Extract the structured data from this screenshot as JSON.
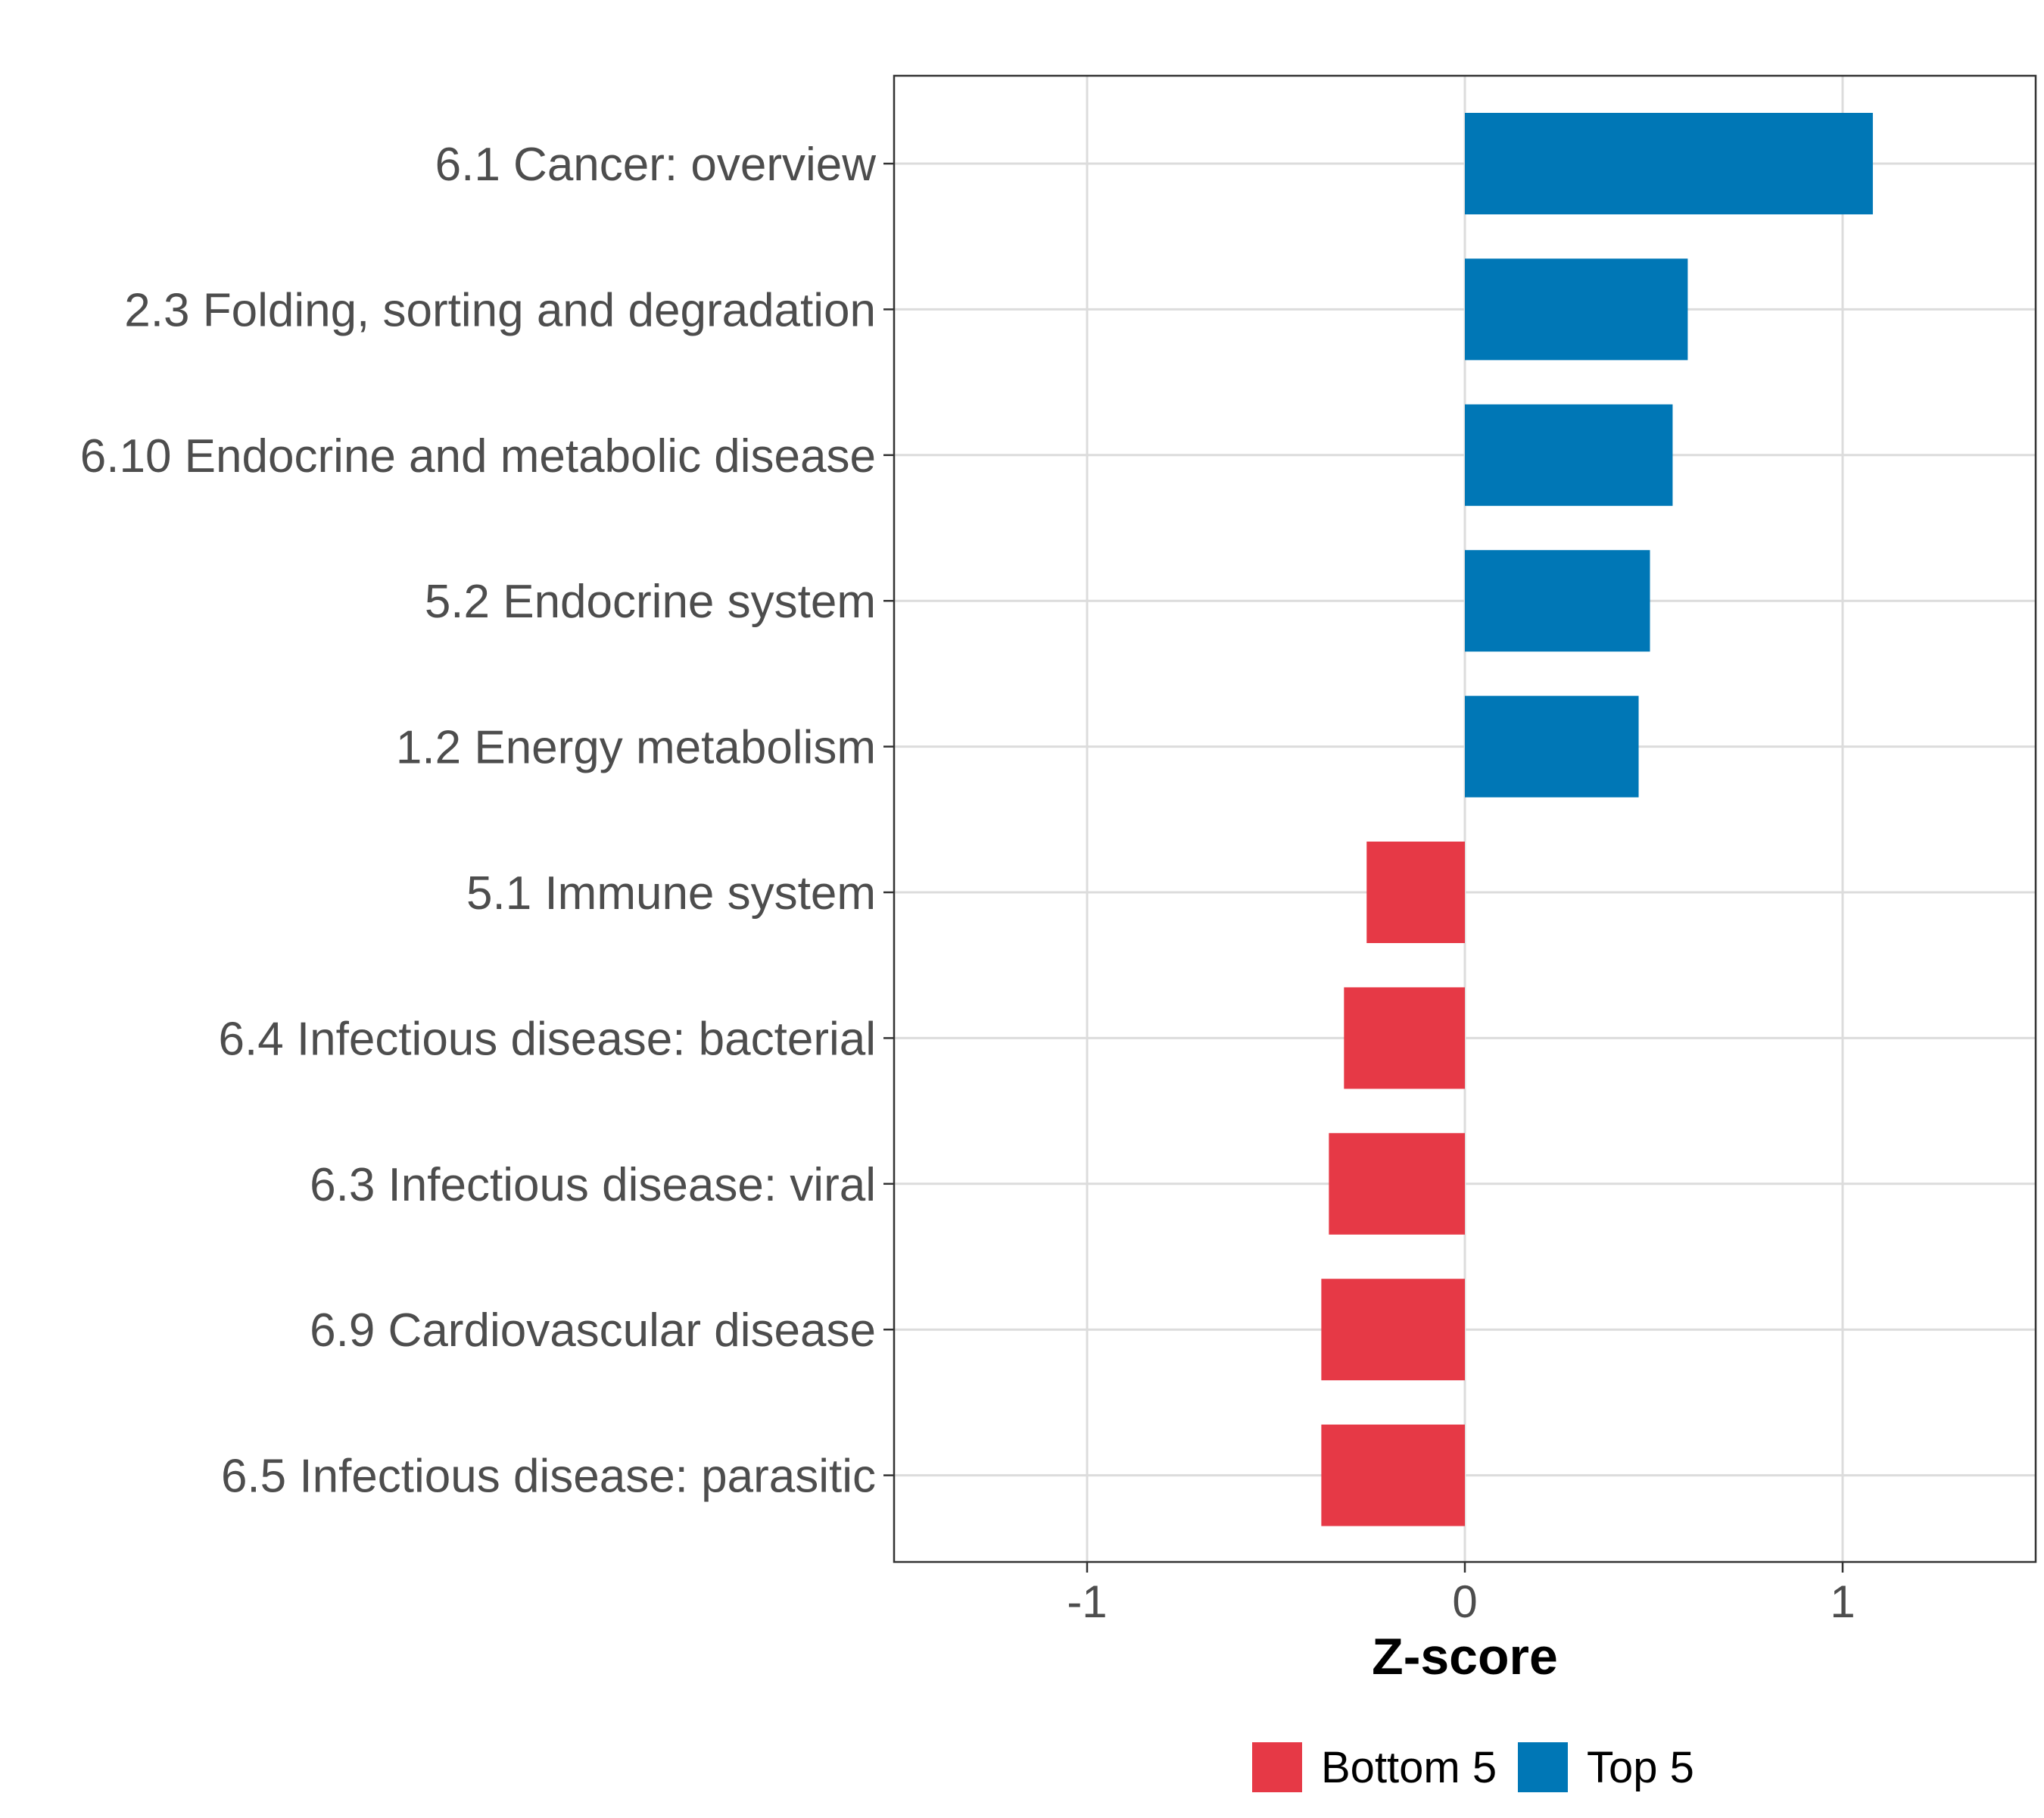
{
  "chart_data": {
    "type": "bar",
    "orientation": "horizontal",
    "categories": [
      "6.1 Cancer: overview",
      "2.3 Folding, sorting and degradation",
      "6.10 Endocrine and metabolic disease",
      "5.2 Endocrine system",
      "1.2 Energy metabolism",
      "5.1 Immune system",
      "6.4 Infectious disease: bacterial",
      "6.3 Infectious disease: viral",
      "6.9 Cardiovascular disease",
      "6.5 Infectious disease: parasitic"
    ],
    "values": [
      1.08,
      0.59,
      0.55,
      0.49,
      0.46,
      -0.26,
      -0.32,
      -0.36,
      -0.38,
      -0.38
    ],
    "groups": [
      "Top 5",
      "Top 5",
      "Top 5",
      "Top 5",
      "Top 5",
      "Bottom 5",
      "Bottom 5",
      "Bottom 5",
      "Bottom 5",
      "Bottom 5"
    ],
    "xlabel": "Z-score",
    "ylabel": "",
    "xlim": [
      -1.51,
      1.51
    ],
    "xticks": [
      -1,
      0,
      1
    ],
    "xtick_labels": [
      "-1",
      "0",
      "1"
    ],
    "grid": true,
    "legend": {
      "position": "bottom",
      "entries": [
        {
          "label": "Bottom 5",
          "color": "#E63946"
        },
        {
          "label": "Top 5",
          "color": "#0077B6"
        }
      ]
    }
  }
}
